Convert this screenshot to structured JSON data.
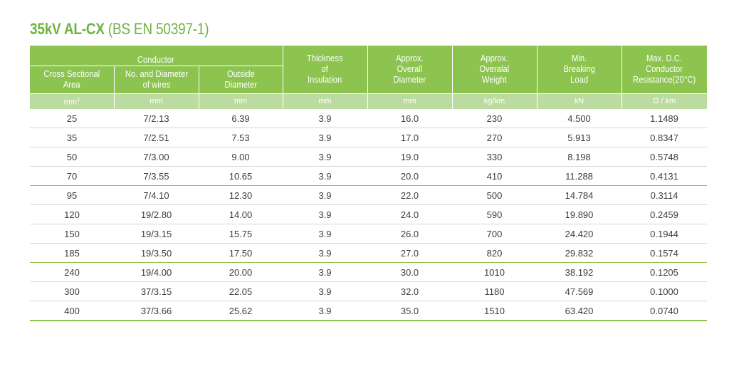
{
  "title": {
    "main": "35kV AL-CX",
    "standard": "(BS EN 50397-1)"
  },
  "colors": {
    "accent": "#8cc44f",
    "unit_row": "#bcdba1",
    "title": "#6db33f"
  },
  "header": {
    "conductor_group": "Conductor",
    "cross_sectional_area": [
      "Cross Sectional",
      "Area"
    ],
    "no_diameter_wires": [
      "No. and Diameter",
      "of wires"
    ],
    "outside_diameter": [
      "Outside",
      "Diameter"
    ],
    "thickness_insulation": [
      "Thickness",
      "of",
      "Insulation"
    ],
    "overall_diameter": [
      "Approx.",
      "Overall",
      "Diameter"
    ],
    "overall_weight": [
      "Approx.",
      "Overalal",
      "Weight"
    ],
    "breaking_load": [
      "Min.",
      "Breaking",
      "Load"
    ],
    "dc_resistance": [
      "Max. D.C.",
      "Conductor",
      "Resistance(20°C)"
    ]
  },
  "units": {
    "area": "mm",
    "area_sup": "2",
    "wires": "mm",
    "outside": "mm",
    "insulation": "mm",
    "overall_diameter": "mm",
    "weight": "kg/km",
    "load": "kN",
    "resistance": "Ω / km"
  },
  "rows": [
    [
      "25",
      "7/2.13",
      "6.39",
      "3.9",
      "16.0",
      "230",
      "4.500",
      "1.1489"
    ],
    [
      "35",
      "7/2.51",
      "7.53",
      "3.9",
      "17.0",
      "270",
      "5.913",
      "0.8347"
    ],
    [
      "50",
      "7/3.00",
      "9.00",
      "3.9",
      "19.0",
      "330",
      "8.198",
      "0.5748"
    ],
    [
      "70",
      "7/3.55",
      "10.65",
      "3.9",
      "20.0",
      "410",
      "11.288",
      "0.4131"
    ],
    [
      "95",
      "7/4.10",
      "12.30",
      "3.9",
      "22.0",
      "500",
      "14.784",
      "0.3114"
    ],
    [
      "120",
      "19/2.80",
      "14.00",
      "3.9",
      "24.0",
      "590",
      "19.890",
      "0.2459"
    ],
    [
      "150",
      "19/3.15",
      "15.75",
      "3.9",
      "26.0",
      "700",
      "24.420",
      "0.1944"
    ],
    [
      "185",
      "19/3.50",
      "17.50",
      "3.9",
      "27.0",
      "820",
      "29.832",
      "0.1574"
    ],
    [
      "240",
      "19/4.00",
      "20.00",
      "3.9",
      "30.0",
      "1010",
      "38.192",
      "0.1205"
    ],
    [
      "300",
      "37/3.15",
      "22.05",
      "3.9",
      "32.0",
      "1180",
      "47.569",
      "0.1000"
    ],
    [
      "400",
      "37/3.66",
      "25.62",
      "3.9",
      "35.0",
      "1510",
      "63.420",
      "0.0740"
    ]
  ]
}
